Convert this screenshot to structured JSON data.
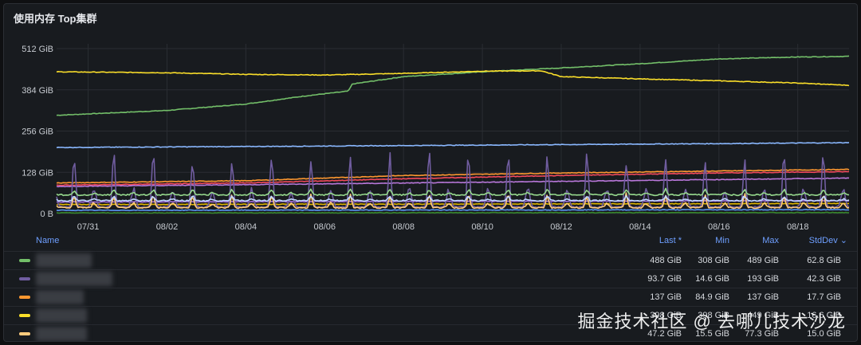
{
  "panel": {
    "title": "使用内存 Top集群"
  },
  "chart_data": {
    "type": "line",
    "title": "使用内存 Top集群",
    "xlabel": "",
    "ylabel": "",
    "y_ticks": [
      "512 GiB",
      "384 GiB",
      "256 GiB",
      "128 GiB",
      "0 B"
    ],
    "y_tick_values": [
      512,
      384,
      256,
      128,
      0
    ],
    "ylim": [
      0,
      512
    ],
    "x_ticks": [
      "07/31",
      "08/02",
      "08/04",
      "08/06",
      "08/08",
      "08/10",
      "08/12",
      "08/14",
      "08/16",
      "08/18"
    ],
    "x_tick_values": [
      0,
      2,
      4,
      6,
      8,
      10,
      12,
      14,
      16,
      18
    ],
    "xlim": [
      -0.8,
      19.3
    ],
    "grid": true,
    "legend_position": "bottom",
    "series": [
      {
        "color": "#73bf69",
        "kind": "trend",
        "points": [
          [
            -0.8,
            305
          ],
          [
            2,
            320
          ],
          [
            4,
            340
          ],
          [
            5.5,
            365
          ],
          [
            6.6,
            380
          ],
          [
            6.7,
            402
          ],
          [
            8,
            425
          ],
          [
            10,
            440
          ],
          [
            12,
            452
          ],
          [
            14,
            465
          ],
          [
            16,
            480
          ],
          [
            18,
            486
          ],
          [
            19.3,
            488
          ]
        ]
      },
      {
        "color": "#fade2a",
        "kind": "trend",
        "points": [
          [
            -0.8,
            440
          ],
          [
            2,
            437
          ],
          [
            4,
            432
          ],
          [
            6,
            430
          ],
          [
            8,
            435
          ],
          [
            10,
            442
          ],
          [
            11.5,
            443
          ],
          [
            12,
            425
          ],
          [
            14,
            418
          ],
          [
            16,
            412
          ],
          [
            18,
            405
          ],
          [
            19.3,
            398
          ]
        ]
      },
      {
        "color": "#8ab8ff",
        "kind": "trend",
        "points": [
          [
            -0.8,
            205
          ],
          [
            4,
            208
          ],
          [
            8,
            211
          ],
          [
            12,
            214
          ],
          [
            16,
            217
          ],
          [
            19.3,
            220
          ]
        ]
      },
      {
        "color": "#ff9830",
        "kind": "trend",
        "points": [
          [
            -0.8,
            95
          ],
          [
            4,
            102
          ],
          [
            8,
            118
          ],
          [
            12,
            126
          ],
          [
            16,
            132
          ],
          [
            19.3,
            137
          ]
        ]
      },
      {
        "color": "#f2495c",
        "kind": "trend",
        "points": [
          [
            -0.8,
            88
          ],
          [
            4,
            95
          ],
          [
            8,
            108
          ],
          [
            12,
            118
          ],
          [
            16,
            126
          ],
          [
            19.3,
            130
          ]
        ]
      },
      {
        "color": "#b877d9",
        "kind": "trend",
        "points": [
          [
            -0.8,
            84
          ],
          [
            6,
            92
          ],
          [
            12,
            100
          ],
          [
            19.3,
            110
          ]
        ]
      },
      {
        "color": "#37872d",
        "kind": "trend",
        "points": [
          [
            -0.8,
            2
          ],
          [
            19.3,
            3
          ]
        ]
      },
      {
        "color": "#5794f2",
        "kind": "trend",
        "points": [
          [
            -0.8,
            10
          ],
          [
            19.3,
            12
          ]
        ]
      },
      {
        "color": "#e0b400",
        "kind": "trend",
        "points": [
          [
            -0.8,
            28
          ],
          [
            19.3,
            31
          ]
        ]
      },
      {
        "color": "#a16ddb",
        "kind": "trend",
        "points": [
          [
            -0.8,
            36
          ],
          [
            19.3,
            40
          ]
        ]
      },
      {
        "color": "#705da0",
        "kind": "daily",
        "base": 20,
        "peak": 189,
        "peak_decay": 0.25
      },
      {
        "color": "#96d98d",
        "kind": "daily",
        "base": 58,
        "peak": 76,
        "peak_decay": 0.3
      },
      {
        "color": "#ffcb7d",
        "kind": "daily",
        "base": 18,
        "peak": 60,
        "peak_decay": 0.3
      },
      {
        "color": "#c0d8ff",
        "kind": "daily",
        "base": 40,
        "peak": 55,
        "peak_decay": 0.35
      }
    ]
  },
  "legend": {
    "headers": {
      "name": "Name",
      "last": "Last *",
      "min": "Min",
      "max": "Max",
      "stddev": "StdDev ⌄"
    },
    "rows": [
      {
        "color": "#73bf69",
        "last": "488 GiB",
        "min": "308 GiB",
        "max": "489 GiB",
        "stddev": "62.8 GiB"
      },
      {
        "color": "#705da0",
        "last": "93.7 GiB",
        "min": "14.6 GiB",
        "max": "193 GiB",
        "stddev": "42.3 GiB"
      },
      {
        "color": "#ff9830",
        "last": "137 GiB",
        "min": "84.9 GiB",
        "max": "137 GiB",
        "stddev": "17.7 GiB"
      },
      {
        "color": "#fade2a",
        "last": "398 GiB",
        "min": "398 GiB",
        "max": "449 GiB",
        "stddev": "16.6 GiB"
      },
      {
        "color": "#ffcb7d",
        "last": "47.2 GiB",
        "min": "15.5 GiB",
        "max": "77.3 GiB",
        "stddev": "15.0 GiB"
      }
    ]
  },
  "watermark": {
    "text": "掘金技术社区 @ 去哪儿技术沙龙"
  }
}
